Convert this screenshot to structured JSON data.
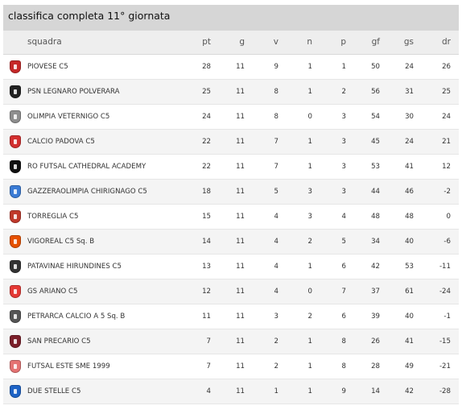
{
  "title": "classifica completa 11° giornata",
  "columns": [
    "squadra",
    "pt",
    "g",
    "v",
    "n",
    "p",
    "gf",
    "gs",
    "dr"
  ],
  "teams": [
    {
      "name": "PIOVESE C5",
      "pt": "28",
      "g": "11",
      "v": "9",
      "n": "1",
      "p": "1",
      "gf": "50",
      "gs": "24",
      "dr": "26",
      "logo_icon": "piovese-crest-icon",
      "color": "#c62828"
    },
    {
      "name": "PSN LEGNARO POLVERARA",
      "pt": "25",
      "g": "11",
      "v": "8",
      "n": "1",
      "p": "2",
      "gf": "56",
      "gs": "31",
      "dr": "25",
      "logo_icon": "legnaro-crest-icon",
      "color": "#222222"
    },
    {
      "name": "OLIMPIA VETERNIGO C5",
      "pt": "24",
      "g": "11",
      "v": "8",
      "n": "0",
      "p": "3",
      "gf": "54",
      "gs": "30",
      "dr": "24",
      "logo_icon": "olimpia-crest-icon",
      "color": "#8e8e8e"
    },
    {
      "name": "CALCIO PADOVA C5",
      "pt": "22",
      "g": "11",
      "v": "7",
      "n": "1",
      "p": "3",
      "gf": "45",
      "gs": "24",
      "dr": "21",
      "logo_icon": "padova-crest-icon",
      "color": "#d32f2f"
    },
    {
      "name": "RO FUTSAL CATHEDRAL ACADEMY",
      "pt": "22",
      "g": "11",
      "v": "7",
      "n": "1",
      "p": "3",
      "gf": "53",
      "gs": "41",
      "dr": "12",
      "logo_icon": "ro-futsal-crest-icon",
      "color": "#111111"
    },
    {
      "name": "GAZZERAOLIMPIA CHIRIGNAGO C5",
      "pt": "18",
      "g": "11",
      "v": "5",
      "n": "3",
      "p": "3",
      "gf": "44",
      "gs": "46",
      "dr": "-2",
      "logo_icon": "gazzera-ball-icon",
      "color": "#3a7bd5"
    },
    {
      "name": "TORREGLIA C5",
      "pt": "15",
      "g": "11",
      "v": "4",
      "n": "3",
      "p": "4",
      "gf": "48",
      "gs": "48",
      "dr": "0",
      "logo_icon": "torreglia-crest-icon",
      "color": "#c0392b"
    },
    {
      "name": "VIGOREAL C5 Sq. B",
      "pt": "14",
      "g": "11",
      "v": "4",
      "n": "2",
      "p": "5",
      "gf": "34",
      "gs": "40",
      "dr": "-6",
      "logo_icon": "vigoreal-crest-icon",
      "color": "#e65100"
    },
    {
      "name": "PATAVINAE HIRUNDINES C5",
      "pt": "13",
      "g": "11",
      "v": "4",
      "n": "1",
      "p": "6",
      "gf": "42",
      "gs": "53",
      "dr": "-11",
      "logo_icon": "patavinae-crest-icon",
      "color": "#333333"
    },
    {
      "name": "GS ARIANO C5",
      "pt": "12",
      "g": "11",
      "v": "4",
      "n": "0",
      "p": "7",
      "gf": "37",
      "gs": "61",
      "dr": "-24",
      "logo_icon": "ariano-crest-icon",
      "color": "#e53935"
    },
    {
      "name": "PETRARCA CALCIO A 5 Sq. B",
      "pt": "11",
      "g": "11",
      "v": "3",
      "n": "2",
      "p": "6",
      "gf": "39",
      "gs": "40",
      "dr": "-1",
      "logo_icon": "petrarca-crest-icon",
      "color": "#555555"
    },
    {
      "name": "SAN PRECARIO C5",
      "pt": "7",
      "g": "11",
      "v": "2",
      "n": "1",
      "p": "8",
      "gf": "26",
      "gs": "41",
      "dr": "-15",
      "logo_icon": "san-precario-crest-icon",
      "color": "#7b1f2a"
    },
    {
      "name": "FUTSAL ESTE SME 1999",
      "pt": "7",
      "g": "11",
      "v": "2",
      "n": "1",
      "p": "8",
      "gf": "28",
      "gs": "49",
      "dr": "-21",
      "logo_icon": "futsal-este-crest-icon",
      "color": "#e57373"
    },
    {
      "name": "DUE STELLE C5",
      "pt": "4",
      "g": "11",
      "v": "1",
      "n": "1",
      "p": "9",
      "gf": "14",
      "gs": "42",
      "dr": "-28",
      "logo_icon": "due-stelle-crest-icon",
      "color": "#1e63c6"
    }
  ]
}
